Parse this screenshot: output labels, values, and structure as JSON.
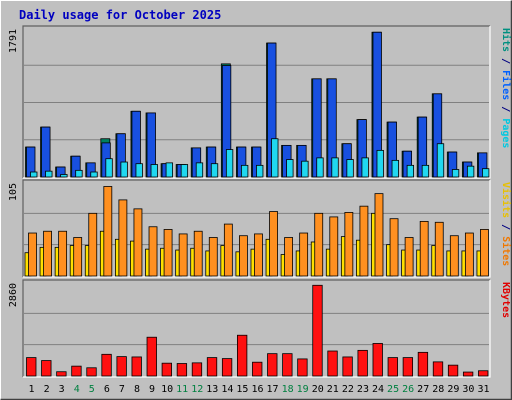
{
  "chart_data": {
    "type": "bar",
    "title": "Daily usage for October 2025",
    "categories": [
      "1",
      "2",
      "3",
      "4",
      "5",
      "6",
      "7",
      "8",
      "9",
      "10",
      "11",
      "12",
      "13",
      "14",
      "15",
      "16",
      "17",
      "18",
      "19",
      "20",
      "21",
      "22",
      "23",
      "24",
      "25",
      "26",
      "27",
      "28",
      "29",
      "30",
      "31"
    ],
    "weekend_days": [
      "4",
      "5",
      "11",
      "12",
      "18",
      "19",
      "25",
      "26"
    ],
    "panels": [
      {
        "id": "hits",
        "ymax_label": "1791",
        "ylim": [
          0,
          1791
        ],
        "right_labels": [
          {
            "text": "Hits",
            "color": "#009080"
          },
          {
            "text": " / ",
            "color": "#000080"
          },
          {
            "text": "Files",
            "color": "#0060ff"
          },
          {
            "text": " / ",
            "color": "#000080"
          },
          {
            "text": "Pages",
            "color": "#00c8e0"
          }
        ],
        "series": [
          {
            "name": "Hits",
            "color": "#008060",
            "values": [
              360,
              600,
              120,
              250,
              170,
              460,
              520,
              790,
              770,
              160,
              150,
              350,
              360,
              1360,
              360,
              360,
              1610,
              380,
              380,
              1180,
              1180,
              400,
              690,
              1740,
              660,
              310,
              720,
              1000,
              300,
              180,
              290
            ]
          },
          {
            "name": "Files",
            "color": "#1850e0",
            "values": [
              360,
              600,
              120,
              250,
              170,
              410,
              520,
              790,
              770,
              160,
              150,
              350,
              360,
              1340,
              360,
              360,
              1610,
              380,
              380,
              1180,
              1180,
              400,
              690,
              1740,
              660,
              310,
              720,
              1000,
              300,
              180,
              290
            ]
          },
          {
            "name": "Pages",
            "color": "#20d8f0",
            "values": [
              60,
              70,
              30,
              80,
              60,
              220,
              180,
              160,
              150,
              170,
              150,
              170,
              160,
              330,
              140,
              140,
              460,
              210,
              190,
              230,
              230,
              210,
              230,
              320,
              200,
              140,
              140,
              400,
              90,
              130,
              100
            ]
          }
        ]
      },
      {
        "id": "visits",
        "ymax_label": "105",
        "ylim": [
          0,
          105
        ],
        "right_labels": [
          {
            "text": "Visits",
            "color": "#e8c000"
          },
          {
            "text": " / ",
            "color": "#000080"
          },
          {
            "text": "Sites",
            "color": "#f07800"
          }
        ],
        "series": [
          {
            "name": "Visits",
            "color": "#ffe000",
            "values": [
              26,
              32,
              32,
              34,
              34,
              50,
              41,
              39,
              30,
              31,
              29,
              31,
              28,
              34,
              27,
              30,
              41,
              24,
              28,
              38,
              30,
              44,
              40,
              70,
              35,
              29,
              29,
              34,
              28,
              28,
              28
            ]
          },
          {
            "name": "Sites",
            "color": "#ff9020",
            "values": [
              48,
              50,
              50,
              43,
              70,
              100,
              85,
              75,
              55,
              52,
              47,
              50,
              43,
              58,
              45,
              47,
              72,
              43,
              48,
              70,
              66,
              71,
              78,
              92,
              64,
              43,
              61,
              60,
              45,
              48,
              52
            ]
          }
        ]
      },
      {
        "id": "kbytes",
        "ymax_label": "2860",
        "ylim": [
          0,
          2860
        ],
        "right_labels": [
          {
            "text": "KBytes",
            "color": "#e00000"
          }
        ],
        "series": [
          {
            "name": "KBytes",
            "color": "#ff1010",
            "values": [
              560,
              470,
              130,
              300,
              250,
              660,
              590,
              580,
              1180,
              390,
              380,
              400,
              560,
              530,
              1240,
              420,
              680,
              680,
              520,
              2760,
              760,
              580,
              780,
              990,
              560,
              560,
              720,
              430,
              330,
              120,
              160
            ]
          }
        ]
      }
    ]
  }
}
